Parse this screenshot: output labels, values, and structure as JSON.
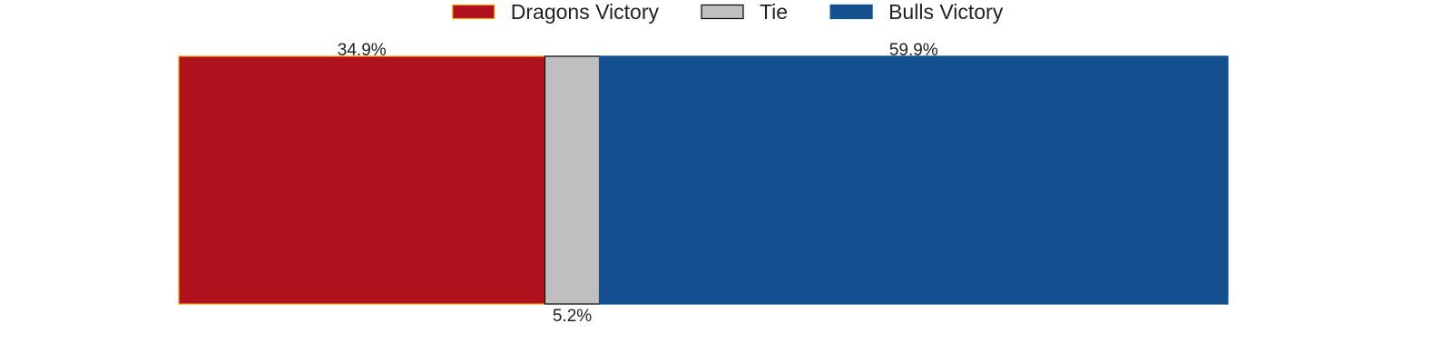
{
  "chart_data": {
    "type": "bar",
    "orientation": "horizontal-stacked",
    "categories": [
      ""
    ],
    "series": [
      {
        "name": "Dragons Victory",
        "values": [
          34.9
        ],
        "label": "34.9%",
        "color": "#b0121d",
        "edge": "#f2a516",
        "label_position": "above"
      },
      {
        "name": "Tie",
        "values": [
          5.2
        ],
        "label": "5.2%",
        "color": "#bfbfbf",
        "edge": "#000000",
        "label_position": "below"
      },
      {
        "name": "Bulls Victory",
        "values": [
          59.9
        ],
        "label": "59.9%",
        "color": "#134f8f",
        "edge": "#134f8f",
        "label_position": "above"
      }
    ],
    "xlim": [
      0,
      100
    ],
    "unit": "%",
    "grid": false,
    "axes_visible": false,
    "legend": {
      "placement": "top-center",
      "orientation": "horizontal"
    }
  }
}
